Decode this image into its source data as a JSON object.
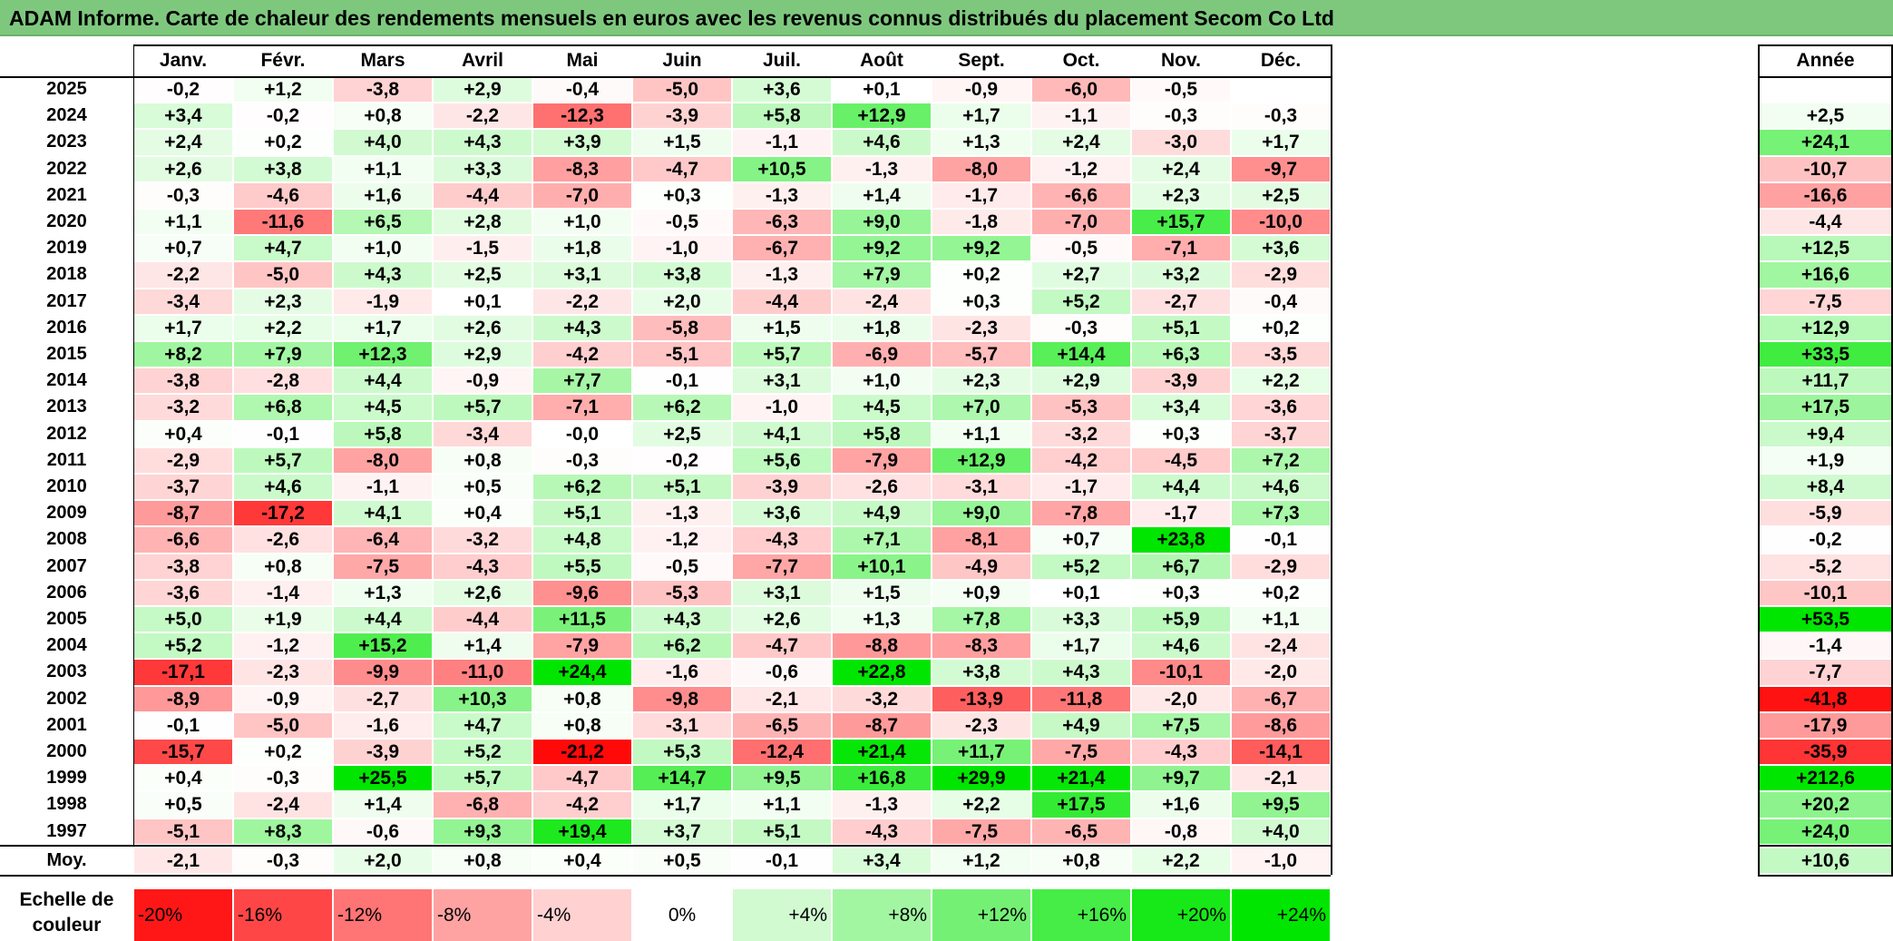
{
  "title": "ADAM Informe. Carte de chaleur des rendements mensuels en euros avec les revenus connus distribués du placement Secom Co Ltd",
  "colors": {
    "title_bg": "#7ec87e",
    "positive_max": "#00e600",
    "negative_max": "#ff0000",
    "neutral": "#ffffff"
  },
  "chart_data": {
    "type": "heatmap",
    "title": "ADAM Informe. Carte de chaleur des rendements mensuels en euros avec les revenus connus distribués du placement Secom Co Ltd",
    "months": [
      "Janv.",
      "Févr.",
      "Mars",
      "Avril",
      "Mai",
      "Juin",
      "Juil.",
      "Août",
      "Sept.",
      "Oct.",
      "Nov.",
      "Déc."
    ],
    "annual_label": "Année",
    "rows": [
      {
        "year": "2025",
        "values": [
          "-0,2",
          "+1,2",
          "-3,8",
          "+2,9",
          "-0,4",
          "-5,0",
          "+3,6",
          "+0,1",
          "-0,9",
          "-6,0",
          "-0,5",
          ""
        ],
        "annual": ""
      },
      {
        "year": "2024",
        "values": [
          "+3,4",
          "-0,2",
          "+0,8",
          "-2,2",
          "-12,3",
          "-3,9",
          "+5,8",
          "+12,9",
          "+1,7",
          "-1,1",
          "-0,3",
          "-0,3"
        ],
        "annual": "+2,5"
      },
      {
        "year": "2023",
        "values": [
          "+2,4",
          "+0,2",
          "+4,0",
          "+4,3",
          "+3,9",
          "+1,5",
          "-1,1",
          "+4,6",
          "+1,3",
          "+2,4",
          "-3,0",
          "+1,7"
        ],
        "annual": "+24,1"
      },
      {
        "year": "2022",
        "values": [
          "+2,6",
          "+3,8",
          "+1,1",
          "+3,3",
          "-8,3",
          "-4,7",
          "+10,5",
          "-1,3",
          "-8,0",
          "-1,2",
          "+2,4",
          "-9,7"
        ],
        "annual": "-10,7"
      },
      {
        "year": "2021",
        "values": [
          "-0,3",
          "-4,6",
          "+1,6",
          "-4,4",
          "-7,0",
          "+0,3",
          "-1,3",
          "+1,4",
          "-1,7",
          "-6,6",
          "+2,3",
          "+2,5"
        ],
        "annual": "-16,6"
      },
      {
        "year": "2020",
        "values": [
          "+1,1",
          "-11,6",
          "+6,5",
          "+2,8",
          "+1,0",
          "-0,5",
          "-6,3",
          "+9,0",
          "-1,8",
          "-7,0",
          "+15,7",
          "-10,0"
        ],
        "annual": "-4,4"
      },
      {
        "year": "2019",
        "values": [
          "+0,7",
          "+4,7",
          "+1,0",
          "-1,5",
          "+1,8",
          "-1,0",
          "-6,7",
          "+9,2",
          "+9,2",
          "-0,5",
          "-7,1",
          "+3,6"
        ],
        "annual": "+12,5"
      },
      {
        "year": "2018",
        "values": [
          "-2,2",
          "-5,0",
          "+4,3",
          "+2,5",
          "+3,1",
          "+3,8",
          "-1,3",
          "+7,9",
          "+0,2",
          "+2,7",
          "+3,2",
          "-2,9"
        ],
        "annual": "+16,6"
      },
      {
        "year": "2017",
        "values": [
          "-3,4",
          "+2,3",
          "-1,9",
          "+0,1",
          "-2,2",
          "+2,0",
          "-4,4",
          "-2,4",
          "+0,3",
          "+5,2",
          "-2,7",
          "-0,4"
        ],
        "annual": "-7,5"
      },
      {
        "year": "2016",
        "values": [
          "+1,7",
          "+2,2",
          "+1,7",
          "+2,6",
          "+4,3",
          "-5,8",
          "+1,5",
          "+1,8",
          "-2,3",
          "-0,3",
          "+5,1",
          "+0,2"
        ],
        "annual": "+12,9"
      },
      {
        "year": "2015",
        "values": [
          "+8,2",
          "+7,9",
          "+12,3",
          "+2,9",
          "-4,2",
          "-5,1",
          "+5,7",
          "-6,9",
          "-5,7",
          "+14,4",
          "+6,3",
          "-3,5"
        ],
        "annual": "+33,5"
      },
      {
        "year": "2014",
        "values": [
          "-3,8",
          "-2,8",
          "+4,4",
          "-0,9",
          "+7,7",
          "-0,1",
          "+3,1",
          "+1,0",
          "+2,3",
          "+2,9",
          "-3,9",
          "+2,2"
        ],
        "annual": "+11,7"
      },
      {
        "year": "2013",
        "values": [
          "-3,2",
          "+6,8",
          "+4,5",
          "+5,7",
          "-7,1",
          "+6,2",
          "-1,0",
          "+4,5",
          "+7,0",
          "-5,3",
          "+3,4",
          "-3,6"
        ],
        "annual": "+17,5"
      },
      {
        "year": "2012",
        "values": [
          "+0,4",
          "-0,1",
          "+5,8",
          "-3,4",
          "-0,0",
          "+2,5",
          "+4,1",
          "+5,8",
          "+1,1",
          "-3,2",
          "+0,3",
          "-3,7"
        ],
        "annual": "+9,4"
      },
      {
        "year": "2011",
        "values": [
          "-2,9",
          "+5,7",
          "-8,0",
          "+0,8",
          "-0,3",
          "-0,2",
          "+5,6",
          "-7,9",
          "+12,9",
          "-4,2",
          "-4,5",
          "+7,2"
        ],
        "annual": "+1,9"
      },
      {
        "year": "2010",
        "values": [
          "-3,7",
          "+4,6",
          "-1,1",
          "+0,5",
          "+6,2",
          "+5,1",
          "-3,9",
          "-2,6",
          "-3,1",
          "-1,7",
          "+4,4",
          "+4,6"
        ],
        "annual": "+8,4"
      },
      {
        "year": "2009",
        "values": [
          "-8,7",
          "-17,2",
          "+4,1",
          "+0,4",
          "+5,1",
          "-1,3",
          "+3,6",
          "+4,9",
          "+9,0",
          "-7,8",
          "-1,7",
          "+7,3"
        ],
        "annual": "-5,9"
      },
      {
        "year": "2008",
        "values": [
          "-6,6",
          "-2,6",
          "-6,4",
          "-3,2",
          "+4,8",
          "-1,2",
          "-4,3",
          "+7,1",
          "-8,1",
          "+0,7",
          "+23,8",
          "-0,1"
        ],
        "annual": "-0,2"
      },
      {
        "year": "2007",
        "values": [
          "-3,8",
          "+0,8",
          "-7,5",
          "-4,3",
          "+5,5",
          "-0,5",
          "-7,7",
          "+10,1",
          "-4,9",
          "+5,2",
          "+6,7",
          "-2,9"
        ],
        "annual": "-5,2"
      },
      {
        "year": "2006",
        "values": [
          "-3,6",
          "-1,4",
          "+1,3",
          "+2,6",
          "-9,6",
          "-5,3",
          "+3,1",
          "+1,5",
          "+0,9",
          "+0,1",
          "+0,3",
          "+0,2"
        ],
        "annual": "-10,1"
      },
      {
        "year": "2005",
        "values": [
          "+5,0",
          "+1,9",
          "+4,4",
          "-4,4",
          "+11,5",
          "+4,3",
          "+2,6",
          "+1,3",
          "+7,8",
          "+3,3",
          "+5,9",
          "+1,1"
        ],
        "annual": "+53,5"
      },
      {
        "year": "2004",
        "values": [
          "+5,2",
          "-1,2",
          "+15,2",
          "+1,4",
          "-7,9",
          "+6,2",
          "-4,7",
          "-8,8",
          "-8,3",
          "+1,7",
          "+4,6",
          "-2,4"
        ],
        "annual": "-1,4"
      },
      {
        "year": "2003",
        "values": [
          "-17,1",
          "-2,3",
          "-9,9",
          "-11,0",
          "+24,4",
          "-1,6",
          "-0,6",
          "+22,8",
          "+3,8",
          "+4,3",
          "-10,1",
          "-2,0"
        ],
        "annual": "-7,7"
      },
      {
        "year": "2002",
        "values": [
          "-8,9",
          "-0,9",
          "-2,7",
          "+10,3",
          "+0,8",
          "-9,8",
          "-2,1",
          "-3,2",
          "-13,9",
          "-11,8",
          "-2,0",
          "-6,7"
        ],
        "annual": "-41,8"
      },
      {
        "year": "2001",
        "values": [
          "-0,1",
          "-5,0",
          "-1,6",
          "+4,7",
          "+0,8",
          "-3,1",
          "-6,5",
          "-8,7",
          "-2,3",
          "+4,9",
          "+7,5",
          "-8,6"
        ],
        "annual": "-17,9"
      },
      {
        "year": "2000",
        "values": [
          "-15,7",
          "+0,2",
          "-3,9",
          "+5,2",
          "-21,2",
          "+5,3",
          "-12,4",
          "+21,4",
          "+11,7",
          "-7,5",
          "-4,3",
          "-14,1"
        ],
        "annual": "-35,9"
      },
      {
        "year": "1999",
        "values": [
          "+0,4",
          "-0,3",
          "+25,5",
          "+5,7",
          "-4,7",
          "+14,7",
          "+9,5",
          "+16,8",
          "+29,9",
          "+21,4",
          "+9,7",
          "-2,1"
        ],
        "annual": "+212,6"
      },
      {
        "year": "1998",
        "values": [
          "+0,5",
          "-2,4",
          "+1,4",
          "-6,8",
          "-4,2",
          "+1,7",
          "+1,1",
          "-1,3",
          "+2,2",
          "+17,5",
          "+1,6",
          "+9,5"
        ],
        "annual": "+20,2"
      },
      {
        "year": "1997",
        "values": [
          "-5,1",
          "+8,3",
          "-0,6",
          "+9,3",
          "+19,4",
          "+3,7",
          "+5,1",
          "-4,3",
          "-7,5",
          "-6,5",
          "-0,8",
          "+4,0"
        ],
        "annual": "+24,0"
      }
    ],
    "average": {
      "label": "Moy.",
      "values": [
        "-2,1",
        "-0,3",
        "+2,0",
        "+0,8",
        "+0,4",
        "+0,5",
        "-0,1",
        "+3,4",
        "+1,2",
        "+0,8",
        "+2,2",
        "-1,0"
      ],
      "annual": "+10,6"
    },
    "color_scale": {
      "label": "Echelle de couleur",
      "stops": [
        "-20%",
        "-16%",
        "-12%",
        "-8%",
        "-4%",
        "0%",
        "+4%",
        "+8%",
        "+12%",
        "+16%",
        "+20%",
        "+24%"
      ]
    }
  }
}
